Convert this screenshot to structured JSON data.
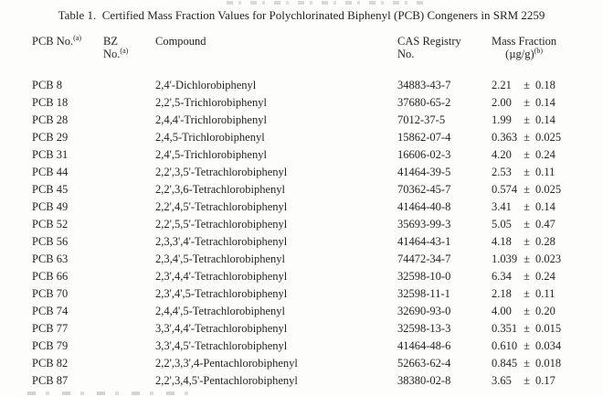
{
  "title": "Table 1.  Certified Mass Fraction Values for Polychlorinated Biphenyl (PCB) Congeners in SRM 2259",
  "table": {
    "pm_symbol": "±",
    "headers": {
      "col1": {
        "text": "PCB No.",
        "sup": "(a)"
      },
      "col2": {
        "line1": "BZ",
        "line2": "No.",
        "sup": "(a)"
      },
      "col3": {
        "text": "Compound"
      },
      "col4": {
        "line1": "CAS Registry",
        "line2": "No."
      },
      "col5": {
        "line1": "Mass Fraction",
        "line2": "(µg/g)",
        "sup": "(b)"
      }
    },
    "rows": [
      {
        "pcb": "PCB 8",
        "bz": "",
        "compound": "2,4'-Dichlorobiphenyl",
        "cas": "34883-43-7",
        "val": "2.21",
        "unc": "0.18"
      },
      {
        "pcb": "PCB 18",
        "bz": "",
        "compound": "2,2',5-Trichlorobiphenyl",
        "cas": "37680-65-2",
        "val": "2.00",
        "unc": "0.14"
      },
      {
        "pcb": "PCB 28",
        "bz": "",
        "compound": "2,4,4'-Trichlorobiphenyl",
        "cas": "7012-37-5",
        "val": "1.99",
        "unc": "0.14"
      },
      {
        "pcb": "PCB 29",
        "bz": "",
        "compound": "2,4,5-Trichlorobiphenyl",
        "cas": "15862-07-4",
        "val": "0.363",
        "unc": "0.025"
      },
      {
        "pcb": "PCB 31",
        "bz": "",
        "compound": "2,4',5-Trichlorobiphenyl",
        "cas": "16606-02-3",
        "val": "4.20",
        "unc": "0.24"
      },
      {
        "pcb": "PCB 44",
        "bz": "",
        "compound": "2,2',3,5'-Tetrachlorobiphenyl",
        "cas": "41464-39-5",
        "val": "2.53",
        "unc": "0.11"
      },
      {
        "pcb": "PCB 45",
        "bz": "",
        "compound": "2,2',3,6-Tetrachlorobiphenyl",
        "cas": "70362-45-7",
        "val": "0.574",
        "unc": "0.025"
      },
      {
        "pcb": "PCB 49",
        "bz": "",
        "compound": "2,2',4,5'-Tetrachlorobiphenyl",
        "cas": "41464-40-8",
        "val": "3.41",
        "unc": "0.14"
      },
      {
        "pcb": "PCB 52",
        "bz": "",
        "compound": "2,2',5,5'-Tetrachlorobiphenyl",
        "cas": "35693-99-3",
        "val": "5.05",
        "unc": "0.47"
      },
      {
        "pcb": "PCB 56",
        "bz": "",
        "compound": "2,3,3',4'-Tetrachlorobiphenyl",
        "cas": "41464-43-1",
        "val": "4.18",
        "unc": "0.28"
      },
      {
        "pcb": "PCB 63",
        "bz": "",
        "compound": "2,3,4',5-Tetrachlorobiphenyl",
        "cas": "74472-34-7",
        "val": "1.039",
        "unc": "0.023"
      },
      {
        "pcb": "PCB 66",
        "bz": "",
        "compound": "2,3',4,4'-Tetrachlorobiphenyl",
        "cas": "32598-10-0",
        "val": "6.34",
        "unc": "0.24"
      },
      {
        "pcb": "PCB 70",
        "bz": "",
        "compound": "2,3',4',5-Tetrachlorobiphenyl",
        "cas": "32598-11-1",
        "val": "2.18",
        "unc": "0.11"
      },
      {
        "pcb": "PCB 74",
        "bz": "",
        "compound": "2,4,4',5-Tetrachlorobiphenyl",
        "cas": "32690-93-0",
        "val": "4.00",
        "unc": "0.20"
      },
      {
        "pcb": "PCB 77",
        "bz": "",
        "compound": "3,3',4,4'-Tetrachlorobiphenyl",
        "cas": "32598-13-3",
        "val": "0.351",
        "unc": "0.015"
      },
      {
        "pcb": "PCB 79",
        "bz": "",
        "compound": "3,3',4,5'-Tetrachlorobiphenyl",
        "cas": "41464-48-6",
        "val": "0.610",
        "unc": "0.034"
      },
      {
        "pcb": "PCB 82",
        "bz": "",
        "compound": "2,2',3,3',4-Pentachlorobiphenyl",
        "cas": "52663-62-4",
        "val": "0.845",
        "unc": "0.018"
      },
      {
        "pcb": "PCB 87",
        "bz": "",
        "compound": "2,2',3,4,5'-Pentachlorobiphenyl",
        "cas": "38380-02-8",
        "val": "3.65",
        "unc": "0.17"
      }
    ]
  }
}
